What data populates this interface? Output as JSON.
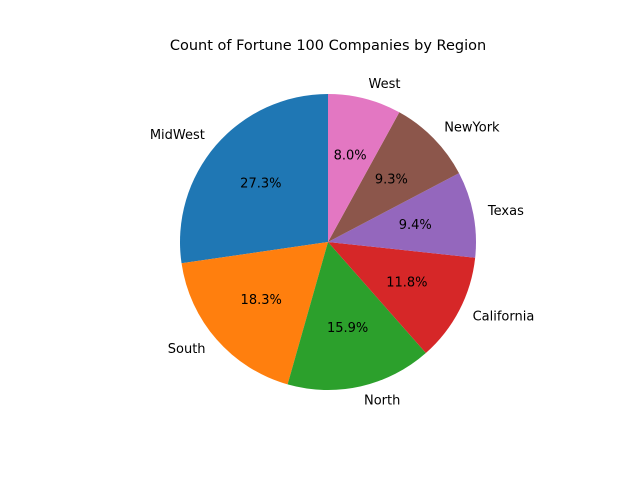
{
  "chart_data": {
    "type": "pie",
    "title": "Count of Fortune 100 Companies by Region",
    "start_angle_deg": 90,
    "direction": "counterclockwise",
    "autopct_format": "%.1f%%",
    "slices": [
      {
        "label": "MidWest",
        "percent": 27.3,
        "color": "#1f77b4"
      },
      {
        "label": "South",
        "percent": 18.3,
        "color": "#ff7f0e"
      },
      {
        "label": "North",
        "percent": 15.9,
        "color": "#2ca02c"
      },
      {
        "label": "California",
        "percent": 11.8,
        "color": "#d62728"
      },
      {
        "label": "Texas",
        "percent": 9.4,
        "color": "#9467bd"
      },
      {
        "label": "NewYork",
        "percent": 9.3,
        "color": "#8c564b"
      },
      {
        "label": "West",
        "percent": 8.0,
        "color": "#e377c2"
      }
    ]
  }
}
